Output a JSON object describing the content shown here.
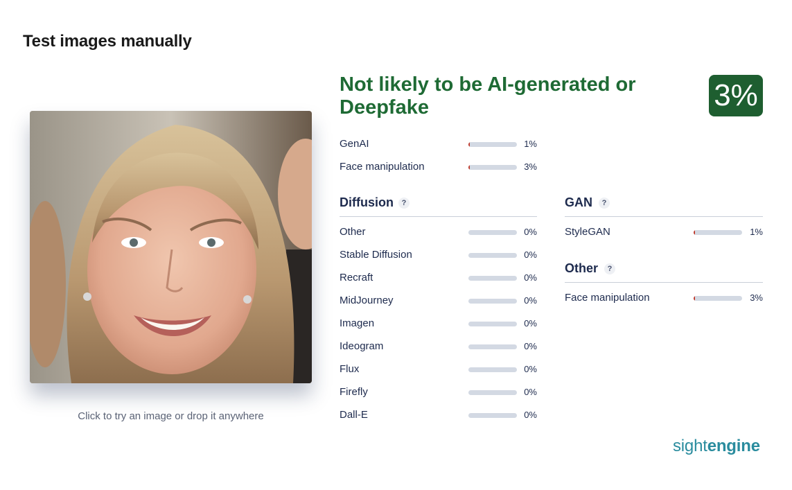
{
  "page": {
    "title": "Test images manually"
  },
  "upload": {
    "caption": "Click to try an image or drop it anywhere"
  },
  "result": {
    "verdict": "Not likely to be AI-generated or Deepfake",
    "verdict_color": "#1e6a34",
    "score": "3%",
    "badge_color": "#1e5e30"
  },
  "summary": [
    {
      "label": "GenAI",
      "percent": "1%",
      "value": 0.01
    },
    {
      "label": "Face manipulation",
      "percent": "3%",
      "value": 0.03
    }
  ],
  "diffusion": {
    "title": "Diffusion",
    "help": "?",
    "items": [
      {
        "label": "Other",
        "percent": "0%",
        "value": 0
      },
      {
        "label": "Stable Diffusion",
        "percent": "0%",
        "value": 0
      },
      {
        "label": "Recraft",
        "percent": "0%",
        "value": 0
      },
      {
        "label": "MidJourney",
        "percent": "0%",
        "value": 0
      },
      {
        "label": "Imagen",
        "percent": "0%",
        "value": 0
      },
      {
        "label": "Ideogram",
        "percent": "0%",
        "value": 0
      },
      {
        "label": "Flux",
        "percent": "0%",
        "value": 0
      },
      {
        "label": "Firefly",
        "percent": "0%",
        "value": 0
      },
      {
        "label": "Dall-E",
        "percent": "0%",
        "value": 0
      }
    ]
  },
  "gan": {
    "title": "GAN",
    "help": "?",
    "items": [
      {
        "label": "StyleGAN",
        "percent": "1%",
        "value": 0.01
      }
    ]
  },
  "other": {
    "title": "Other",
    "help": "?",
    "items": [
      {
        "label": "Face manipulation",
        "percent": "3%",
        "value": 0.03
      }
    ]
  },
  "brand": {
    "part1": "sight",
    "part2": "engine",
    "color": "#2a8c9e"
  }
}
